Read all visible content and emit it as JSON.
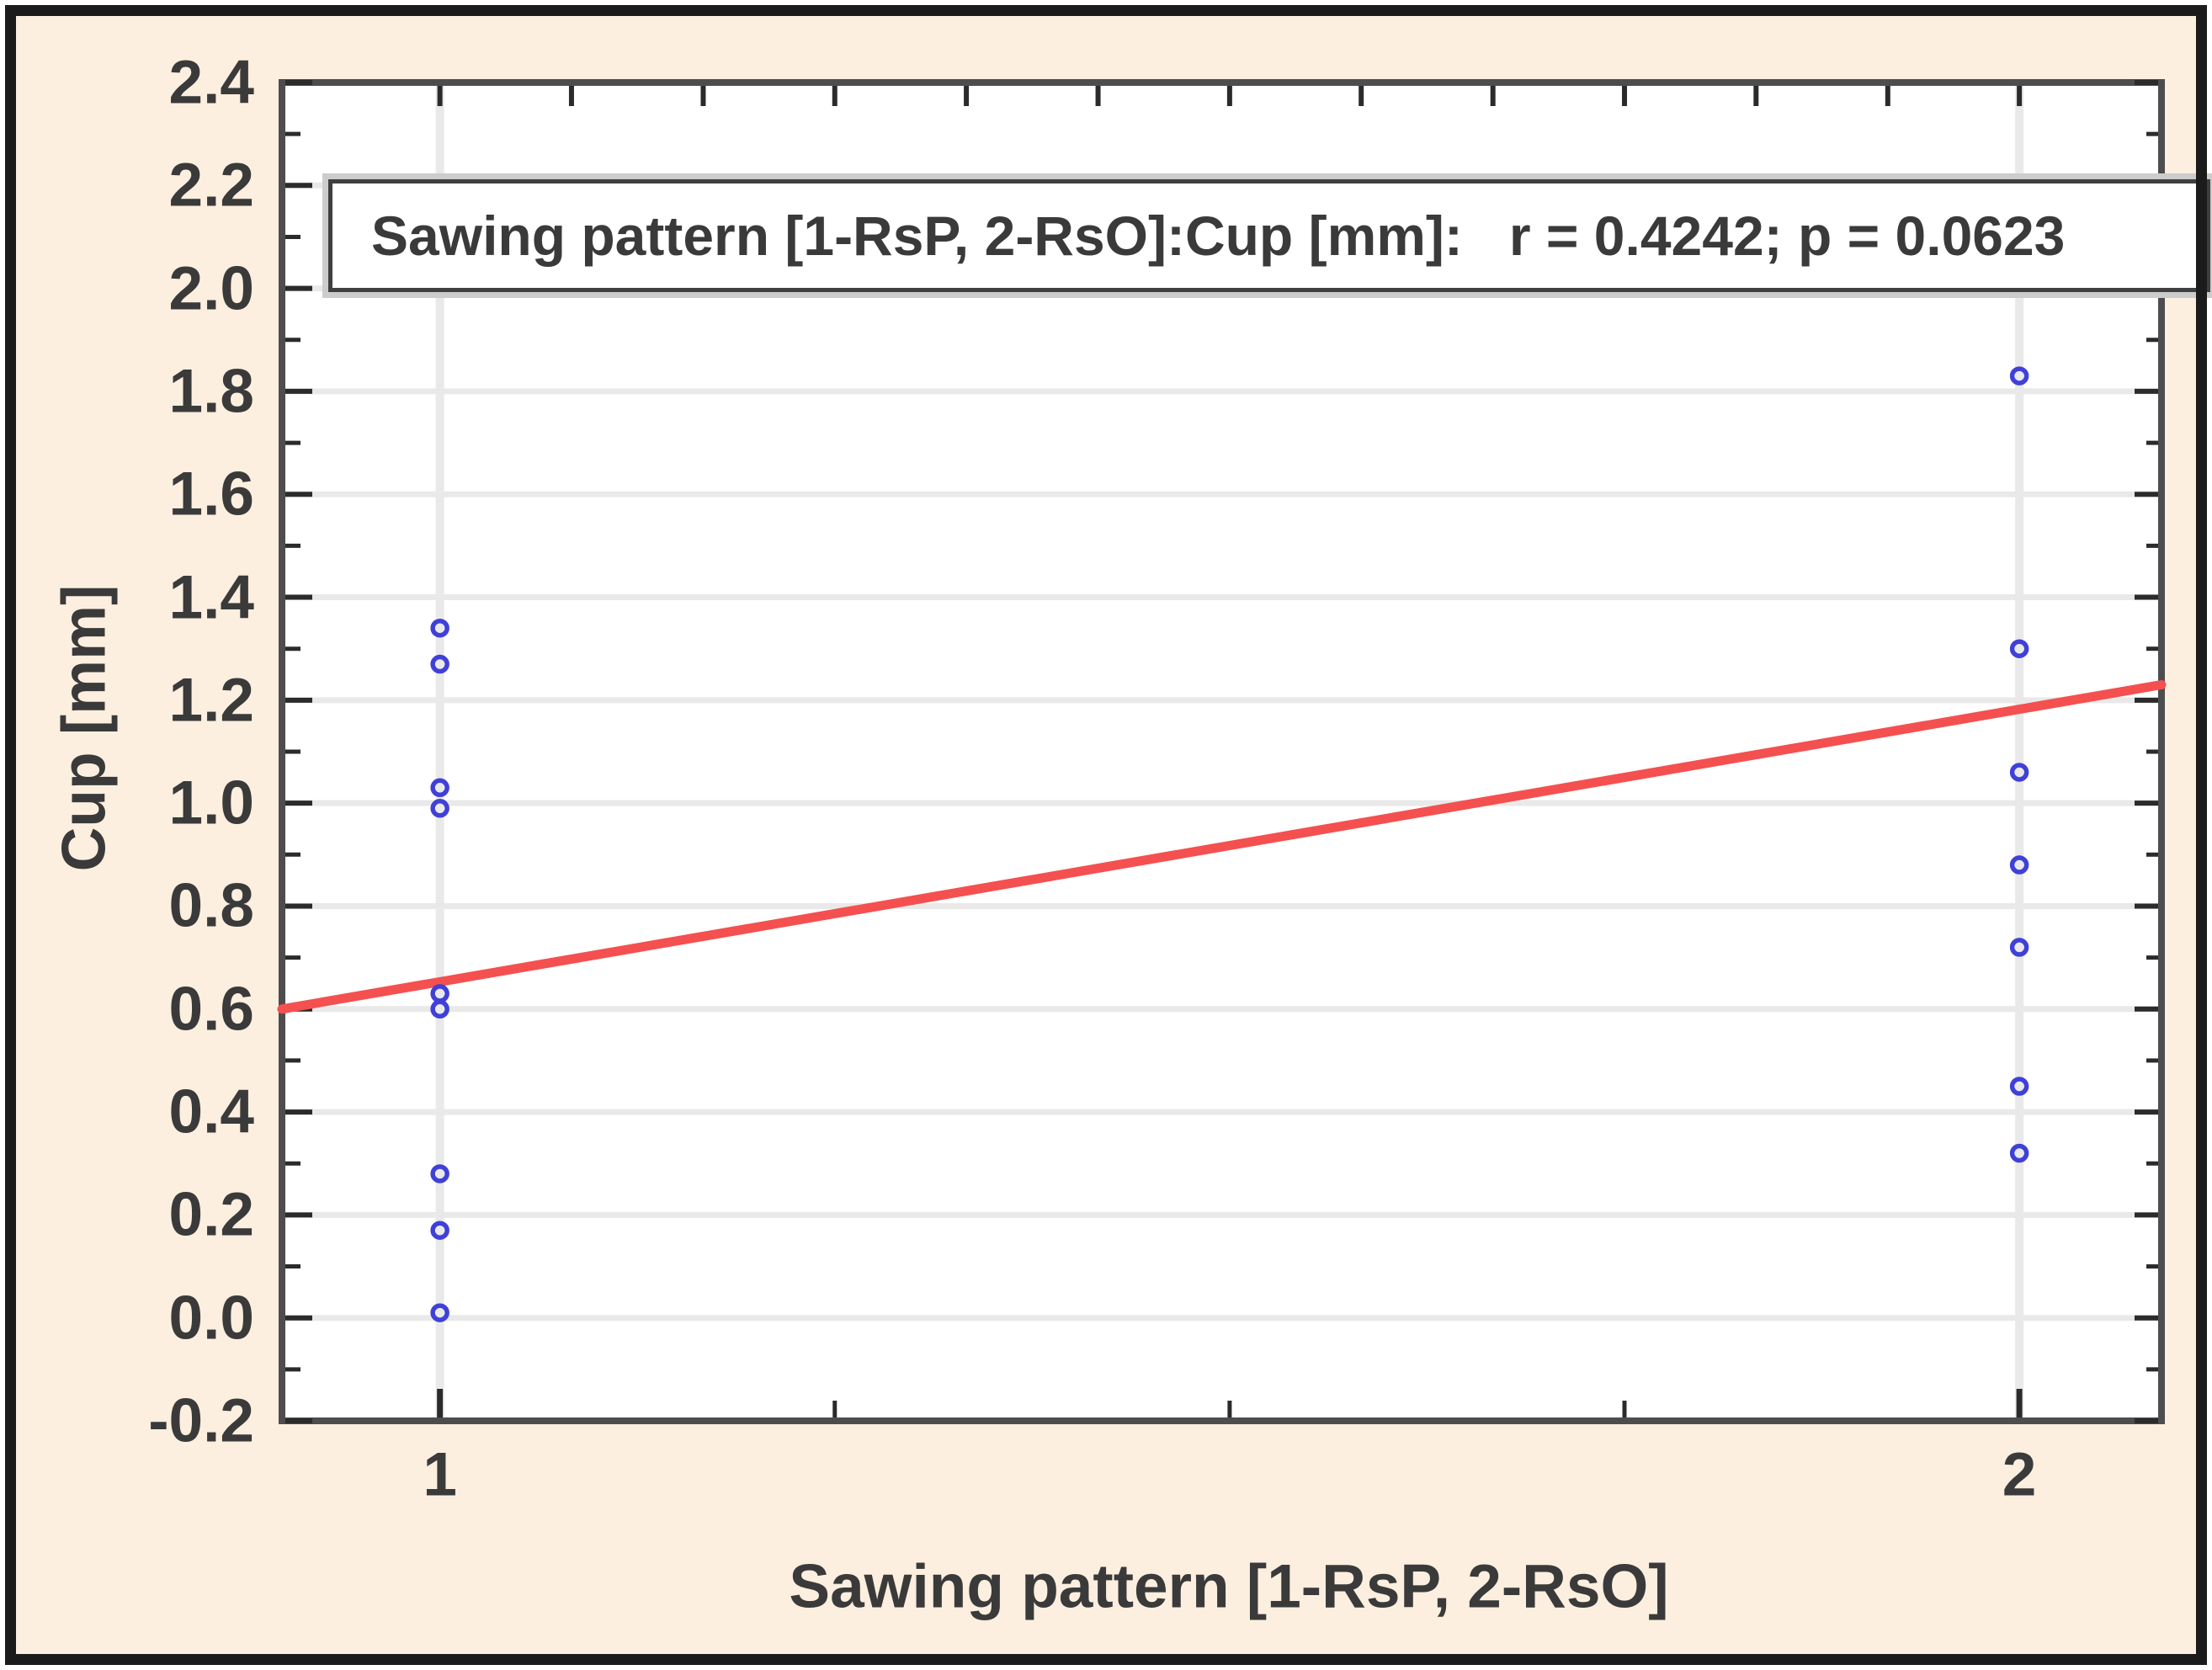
{
  "chart_data": {
    "type": "scatter",
    "title": "Sawing pattern [1-RsP, 2-RsO]:Cup [mm]:   r = 0.4242; p = 0.0623",
    "xlabel": "Sawing pattern [1-RsP, 2-RsO]",
    "ylabel": "Cup [mm]",
    "stats": {
      "r": "0.4242",
      "p": "0.0623"
    },
    "x_range": [
      0.9,
      2.09
    ],
    "y_range": [
      -0.2,
      2.4
    ],
    "x_tick_values": [
      1,
      2
    ],
    "x_tick_labels": [
      "1",
      "2"
    ],
    "x_minor_ticks": [
      1.25,
      1.5,
      1.75
    ],
    "top_edge_ticks": [
      1,
      1.0833,
      1.1667,
      1.25,
      1.3333,
      1.4167,
      1.5,
      1.5833,
      1.6667,
      1.75,
      1.8333,
      1.9167,
      2
    ],
    "y_tick_values": [
      2.4,
      2.2,
      2.0,
      1.8,
      1.6,
      1.4,
      1.2,
      1.0,
      0.8,
      0.6,
      0.4,
      0.2,
      0.0,
      -0.2
    ],
    "y_tick_labels": [
      "2.4",
      "2.2",
      "2.0",
      "1.8",
      "1.6",
      "1.4",
      "1.2",
      "1.0",
      "0.8",
      "0.6",
      "0.4",
      "0.2",
      "0.0",
      "-0.2"
    ],
    "y_minor_ticks": [
      2.3,
      2.1,
      1.9,
      1.7,
      1.5,
      1.3,
      1.1,
      0.9,
      0.7,
      0.5,
      0.3,
      0.1,
      -0.1
    ],
    "y_gridlines": [
      0.0,
      0.2,
      0.4,
      0.6,
      0.8,
      1.0,
      1.2,
      1.4,
      1.6,
      1.8,
      2.0,
      2.2
    ],
    "x_gridlines": [
      1,
      2
    ],
    "grid": true,
    "legend_position": "none",
    "series": [
      {
        "name": "RsP",
        "x": 1,
        "cup_mm": [
          1.34,
          1.27,
          1.03,
          0.99,
          0.63,
          0.6,
          0.28,
          0.17,
          0.01
        ]
      },
      {
        "name": "RsO",
        "x": 2,
        "cup_mm": [
          1.83,
          1.3,
          1.06,
          0.88,
          0.72,
          0.45,
          0.32
        ]
      }
    ],
    "regression_line": {
      "x1": 0.9,
      "y1": 0.6,
      "x2": 2.09,
      "y2": 1.23
    },
    "colors": {
      "background": "#fcefdf",
      "plot_background": "#ffffff",
      "plot_frame": "#4d4d4d",
      "outer_border": "#1b1b1b",
      "gridline": "#e9e9e9",
      "tick": "#2b2b2b",
      "point": "#4040d8",
      "regression_line": "#f45050",
      "text": "#3a3a3a"
    }
  }
}
